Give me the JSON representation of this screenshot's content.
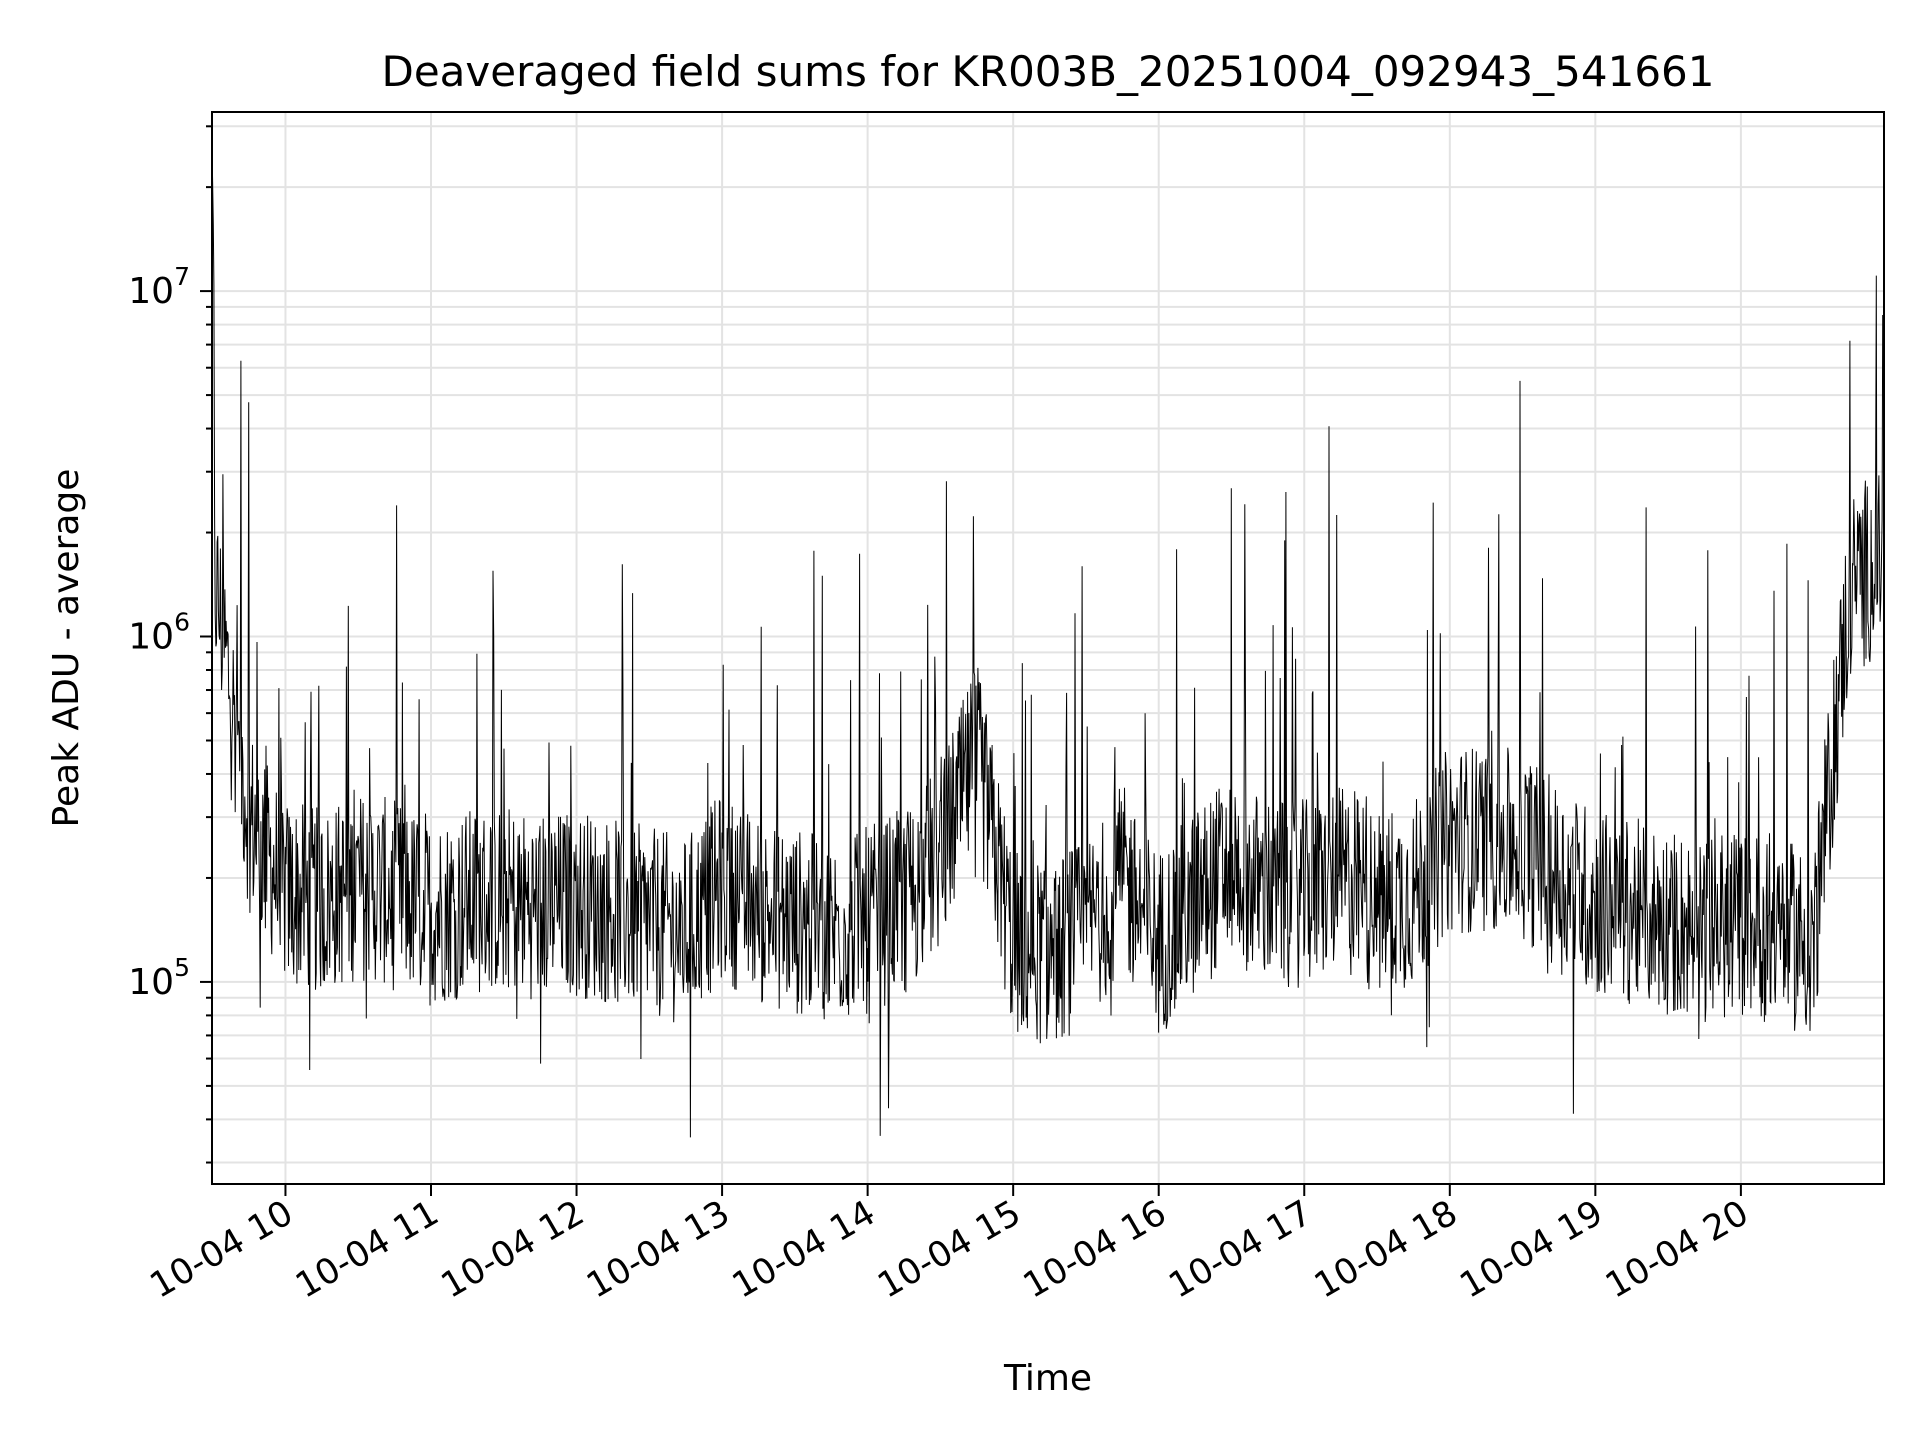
{
  "chart_data": {
    "type": "line",
    "title": "Deaveraged field sums for KR003B_20251004_092943_541661",
    "xlabel": "Time",
    "ylabel": "Peak ADU - average",
    "yscale": "log",
    "ylim": [
      26000,
      33000000
    ],
    "xlim": [
      "2025-10-04 09:29:43",
      "2025-10-04 20:59:00"
    ],
    "grid": true,
    "legend": "none",
    "line_color": "#000000",
    "x_ticks": [
      "10-04 10",
      "10-04 11",
      "10-04 12",
      "10-04 13",
      "10-04 14",
      "10-04 15",
      "10-04 16",
      "10-04 17",
      "10-04 18",
      "10-04 19",
      "10-04 20"
    ],
    "y_ticks": [
      {
        "base": "10",
        "exp": "5",
        "value": 100000
      },
      {
        "base": "10",
        "exp": "6",
        "value": 1000000
      },
      {
        "base": "10",
        "exp": "7",
        "value": 10000000
      }
    ],
    "series": [
      {
        "values_note_x": "sampled every 15 minutes",
        "x": [
          "2025-10-04 09:30",
          "2025-10-04 09:45",
          "2025-10-04 10:00",
          "2025-10-04 10:15",
          "2025-10-04 10:30",
          "2025-10-04 10:45",
          "2025-10-04 11:00",
          "2025-10-04 11:15",
          "2025-10-04 11:30",
          "2025-10-04 11:45",
          "2025-10-04 12:00",
          "2025-10-04 12:15",
          "2025-10-04 12:30",
          "2025-10-04 12:45",
          "2025-10-04 13:00",
          "2025-10-04 13:15",
          "2025-10-04 13:30",
          "2025-10-04 13:45",
          "2025-10-04 14:00",
          "2025-10-04 14:15",
          "2025-10-04 14:30",
          "2025-10-04 14:45",
          "2025-10-04 15:00",
          "2025-10-04 15:15",
          "2025-10-04 15:30",
          "2025-10-04 15:45",
          "2025-10-04 16:00",
          "2025-10-04 16:15",
          "2025-10-04 16:30",
          "2025-10-04 16:45",
          "2025-10-04 17:00",
          "2025-10-04 17:15",
          "2025-10-04 17:30",
          "2025-10-04 17:45",
          "2025-10-04 18:00",
          "2025-10-04 18:15",
          "2025-10-04 18:30",
          "2025-10-04 18:45",
          "2025-10-04 19:00",
          "2025-10-04 19:15",
          "2025-10-04 19:30",
          "2025-10-04 19:45",
          "2025-10-04 20:00",
          "2025-10-04 20:15",
          "2025-10-04 20:30",
          "2025-10-04 20:45",
          "2025-10-04 20:58"
        ],
        "values": [
          1600000,
          300000,
          180000,
          170000,
          190000,
          180000,
          160000,
          170000,
          175000,
          165000,
          170000,
          160000,
          150000,
          140000,
          190000,
          160000,
          150000,
          140000,
          150000,
          170000,
          230000,
          450000,
          130000,
          120000,
          140000,
          200000,
          130000,
          170000,
          220000,
          180000,
          180000,
          200000,
          170000,
          180000,
          260000,
          260000,
          250000,
          200000,
          170000,
          160000,
          150000,
          140000,
          150000,
          140000,
          130000,
          1400000,
          1700000
        ]
      }
    ]
  }
}
